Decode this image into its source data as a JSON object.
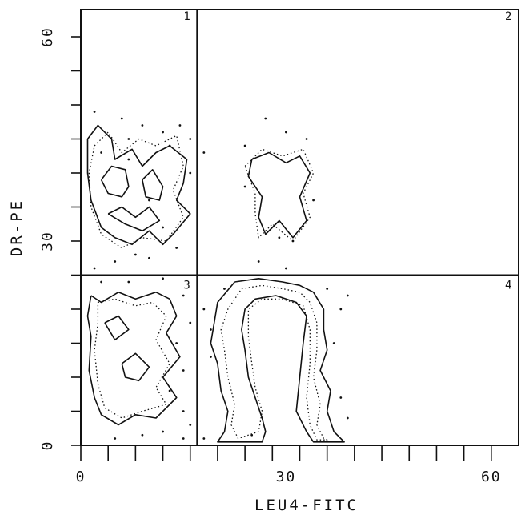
{
  "chart_data": {
    "type": "contour",
    "xlabel": "LEU4-FITC",
    "ylabel": "DR-PE",
    "xlim": [
      0,
      64
    ],
    "ylim": [
      0,
      64
    ],
    "x_tick_labels": [
      {
        "value": 0,
        "label": "0"
      },
      {
        "value": 30,
        "label": "30"
      },
      {
        "value": 60,
        "label": "60"
      }
    ],
    "y_tick_labels": [
      {
        "value": 0,
        "label": "0"
      },
      {
        "value": 30,
        "label": "30"
      },
      {
        "value": 60,
        "label": "60"
      }
    ],
    "x_minor_ticks": [
      0,
      4,
      8,
      12,
      16,
      20,
      24,
      28,
      32,
      36,
      40,
      44,
      48,
      52,
      56,
      60
    ],
    "y_minor_ticks": [
      0,
      5,
      10,
      15,
      20,
      25,
      30,
      35,
      40,
      45,
      50,
      55,
      60
    ],
    "gates": {
      "x": 17,
      "y": 25
    },
    "quadrants": [
      {
        "label": "1",
        "at": [
          16,
          62.5
        ]
      },
      {
        "label": "2",
        "at": [
          63,
          62.5
        ]
      },
      {
        "label": "3",
        "at": [
          16,
          23
        ]
      },
      {
        "label": "4",
        "at": [
          63,
          23
        ]
      }
    ],
    "contours": [
      {
        "style": "solid",
        "points": [
          [
            1,
            45
          ],
          [
            2.5,
            47
          ],
          [
            4.5,
            45
          ],
          [
            5,
            42
          ],
          [
            7.5,
            43.5
          ],
          [
            9,
            41
          ],
          [
            11,
            43
          ],
          [
            13,
            44
          ],
          [
            15.5,
            42
          ],
          [
            15,
            38.5
          ],
          [
            14,
            36
          ],
          [
            16,
            34
          ],
          [
            13.5,
            31
          ],
          [
            12,
            29.5
          ],
          [
            10,
            31.5
          ],
          [
            7.5,
            29.5
          ],
          [
            5,
            30.5
          ],
          [
            3,
            32
          ],
          [
            1.5,
            36
          ],
          [
            1,
            40
          ],
          [
            1,
            45
          ]
        ]
      },
      {
        "style": "solid",
        "points": [
          [
            3,
            39
          ],
          [
            4.5,
            41
          ],
          [
            6.5,
            40.5
          ],
          [
            7,
            38
          ],
          [
            6,
            36.5
          ],
          [
            4,
            37
          ],
          [
            3,
            39
          ]
        ]
      },
      {
        "style": "solid",
        "points": [
          [
            9,
            39
          ],
          [
            10.5,
            40.5
          ],
          [
            12,
            38
          ],
          [
            11.5,
            36
          ],
          [
            9.5,
            36.5
          ],
          [
            9,
            39
          ]
        ]
      },
      {
        "style": "solid",
        "points": [
          [
            4,
            34
          ],
          [
            6,
            35
          ],
          [
            8,
            33.5
          ],
          [
            10,
            35
          ],
          [
            11.5,
            33
          ],
          [
            9,
            31.5
          ],
          [
            6.5,
            32.5
          ],
          [
            4,
            34
          ]
        ]
      },
      {
        "style": "dotted",
        "points": [
          [
            2,
            44
          ],
          [
            4,
            46
          ],
          [
            6,
            43
          ],
          [
            8.5,
            45
          ],
          [
            11,
            44
          ],
          [
            14,
            45.5
          ],
          [
            15,
            41
          ],
          [
            13.5,
            37.5
          ],
          [
            15,
            33.5
          ],
          [
            12.5,
            30
          ],
          [
            9,
            30.5
          ],
          [
            6,
            29
          ],
          [
            3,
            31
          ],
          [
            1.5,
            35
          ],
          [
            1.2,
            40
          ],
          [
            2,
            44
          ]
        ]
      },
      {
        "style": "solid",
        "points": [
          [
            25,
            42
          ],
          [
            27.5,
            43
          ],
          [
            30,
            41.5
          ],
          [
            32,
            42.5
          ],
          [
            33.5,
            40
          ],
          [
            32,
            36.5
          ],
          [
            33,
            33
          ],
          [
            31,
            30.5
          ],
          [
            29,
            33
          ],
          [
            27,
            31
          ],
          [
            26,
            33.5
          ],
          [
            26.5,
            36.5
          ],
          [
            24.5,
            39.5
          ],
          [
            25,
            42
          ]
        ]
      },
      {
        "style": "dotted",
        "points": [
          [
            24,
            41
          ],
          [
            26.5,
            43.5
          ],
          [
            29.5,
            42.5
          ],
          [
            32.5,
            43.5
          ],
          [
            34,
            40
          ],
          [
            32.5,
            37
          ],
          [
            33.5,
            33.5
          ],
          [
            31,
            30
          ],
          [
            28,
            32.5
          ],
          [
            26,
            30.5
          ],
          [
            25.5,
            34
          ],
          [
            25.5,
            37
          ],
          [
            24,
            41
          ]
        ]
      },
      {
        "style": "solid",
        "points": [
          [
            1.5,
            22
          ],
          [
            3,
            21
          ],
          [
            5.5,
            22.5
          ],
          [
            8,
            21.5
          ],
          [
            11,
            22.5
          ],
          [
            13,
            21.5
          ],
          [
            14,
            19
          ],
          [
            12.5,
            16.5
          ],
          [
            14.5,
            13
          ],
          [
            12,
            10
          ],
          [
            14,
            7
          ],
          [
            11,
            4
          ],
          [
            8,
            4.5
          ],
          [
            5.5,
            3
          ],
          [
            3,
            4.5
          ],
          [
            2,
            7
          ],
          [
            1.2,
            11
          ],
          [
            1.5,
            16
          ],
          [
            1,
            19
          ],
          [
            1.5,
            22
          ]
        ]
      },
      {
        "style": "dotted",
        "points": [
          [
            2.5,
            21
          ],
          [
            5,
            21.5
          ],
          [
            8,
            20.5
          ],
          [
            10.5,
            21
          ],
          [
            12.5,
            19
          ],
          [
            11,
            15.5
          ],
          [
            13,
            12
          ],
          [
            11,
            8.5
          ],
          [
            12.5,
            6
          ],
          [
            9,
            5
          ],
          [
            6,
            4
          ],
          [
            3.5,
            5.5
          ],
          [
            2.5,
            9
          ],
          [
            2,
            14
          ],
          [
            2.5,
            18
          ],
          [
            2.5,
            21
          ]
        ]
      },
      {
        "style": "solid",
        "points": [
          [
            3.5,
            18
          ],
          [
            5.5,
            19
          ],
          [
            7,
            17
          ],
          [
            5,
            15.5
          ],
          [
            3.5,
            18
          ]
        ]
      },
      {
        "style": "solid",
        "points": [
          [
            6,
            12
          ],
          [
            8,
            13.5
          ],
          [
            10,
            11.5
          ],
          [
            8.5,
            9.5
          ],
          [
            6.5,
            10
          ],
          [
            6,
            12
          ]
        ]
      },
      {
        "style": "solid",
        "points": [
          [
            22.5,
            24
          ],
          [
            26,
            24.5
          ],
          [
            29.5,
            24
          ],
          [
            32,
            23.5
          ],
          [
            34,
            22.5
          ],
          [
            35.5,
            20
          ],
          [
            35.5,
            17
          ],
          [
            36,
            14
          ],
          [
            35,
            11
          ],
          [
            36.5,
            8
          ],
          [
            36,
            5
          ],
          [
            37,
            2
          ],
          [
            38.5,
            0.5
          ],
          [
            34,
            0.5
          ],
          [
            33,
            2
          ],
          [
            32,
            4
          ],
          [
            31.5,
            5
          ],
          [
            32,
            10
          ],
          [
            32.5,
            15
          ],
          [
            33,
            19
          ],
          [
            31.5,
            21
          ],
          [
            28.5,
            22
          ],
          [
            25.5,
            21.5
          ],
          [
            24,
            20
          ],
          [
            23.5,
            17
          ],
          [
            24,
            14
          ],
          [
            24.5,
            10
          ],
          [
            25.5,
            7
          ],
          [
            26.5,
            4
          ],
          [
            27,
            2
          ],
          [
            26.5,
            0.5
          ],
          [
            20,
            0.5
          ],
          [
            21,
            2
          ],
          [
            21.5,
            5
          ],
          [
            20.5,
            8
          ],
          [
            20,
            12
          ],
          [
            19,
            15
          ],
          [
            19.5,
            18
          ],
          [
            20,
            21
          ],
          [
            22.5,
            24
          ]
        ]
      },
      {
        "style": "dotted",
        "points": [
          [
            23.5,
            23
          ],
          [
            26.5,
            23.5
          ],
          [
            29.5,
            23
          ],
          [
            32,
            22.5
          ],
          [
            33.5,
            21
          ],
          [
            34.5,
            18
          ],
          [
            34.5,
            14
          ],
          [
            34,
            10
          ],
          [
            35,
            6
          ],
          [
            34.5,
            3
          ],
          [
            35.5,
            1
          ],
          [
            36,
            0.8
          ],
          [
            34.5,
            0.8
          ],
          [
            33.5,
            3
          ],
          [
            33,
            7
          ],
          [
            33.5,
            12
          ],
          [
            33.5,
            17
          ],
          [
            32.5,
            20.5
          ],
          [
            29.5,
            21.5
          ],
          [
            26.5,
            21.5
          ],
          [
            24.5,
            20
          ],
          [
            24.5,
            16
          ],
          [
            25,
            12
          ],
          [
            25.5,
            8.5
          ],
          [
            26.5,
            5
          ],
          [
            26,
            2
          ],
          [
            23,
            1
          ],
          [
            22,
            3
          ],
          [
            22.5,
            6
          ],
          [
            21.5,
            10
          ],
          [
            21,
            14
          ],
          [
            20.5,
            17
          ],
          [
            21.5,
            20
          ],
          [
            23.5,
            23
          ]
        ]
      }
    ],
    "events": [
      [
        6,
        48
      ],
      [
        9,
        47
      ],
      [
        12,
        46
      ],
      [
        14.5,
        47
      ],
      [
        16,
        45
      ],
      [
        13,
        44
      ],
      [
        7,
        45
      ],
      [
        3,
        43
      ],
      [
        10,
        36
      ],
      [
        12,
        32
      ],
      [
        8,
        28
      ],
      [
        5,
        27
      ],
      [
        14,
        29
      ],
      [
        2,
        26
      ],
      [
        16,
        40
      ],
      [
        18,
        43
      ],
      [
        27,
        48
      ],
      [
        24,
        44
      ],
      [
        30,
        46
      ],
      [
        33,
        45
      ],
      [
        24,
        38
      ],
      [
        34,
        36
      ],
      [
        31,
        30
      ],
      [
        29,
        30.5
      ],
      [
        26,
        27
      ],
      [
        30,
        26
      ],
      [
        3,
        24
      ],
      [
        7,
        24
      ],
      [
        12,
        24.5
      ],
      [
        15,
        22
      ],
      [
        16,
        18
      ],
      [
        14,
        15
      ],
      [
        15,
        11
      ],
      [
        13,
        8
      ],
      [
        15,
        5
      ],
      [
        16,
        3
      ],
      [
        5,
        1
      ],
      [
        9,
        1.5
      ],
      [
        12,
        2
      ],
      [
        15,
        1
      ],
      [
        18,
        20
      ],
      [
        19,
        17
      ],
      [
        19,
        13
      ],
      [
        21,
        23
      ],
      [
        36,
        23
      ],
      [
        38,
        20
      ],
      [
        39,
        22
      ],
      [
        37,
        15
      ],
      [
        38,
        7
      ],
      [
        39,
        4
      ],
      [
        25,
        1.5
      ],
      [
        18,
        1
      ],
      [
        2,
        49
      ],
      [
        7,
        42
      ],
      [
        10,
        27.5
      ]
    ]
  }
}
